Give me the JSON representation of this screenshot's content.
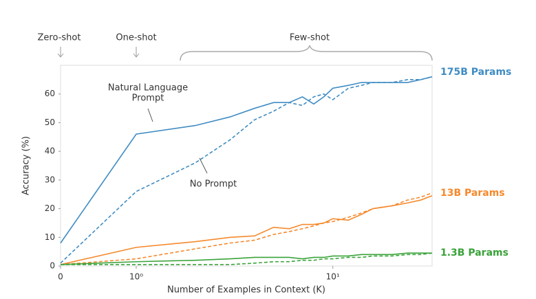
{
  "chart_data": {
    "type": "line",
    "x_label": "Number of Examples in Context  (K)",
    "y_label": "Accuracy (%)",
    "annotations": {
      "zero_shot": "Zero-shot",
      "one_shot": "One-shot",
      "few_shot": "Few-shot",
      "natural_language_1": "Natural Language",
      "natural_language_2": "Prompt",
      "no_prompt": "No Prompt"
    },
    "x": [
      0,
      1,
      2,
      3,
      4,
      5,
      6,
      7,
      8,
      9,
      10,
      12,
      14,
      16,
      20,
      24,
      28,
      32
    ],
    "xlim": [
      0,
      32
    ],
    "xticks": [
      0,
      {
        "value": 1,
        "label": "10⁰"
      },
      {
        "value": 10,
        "label": "10¹"
      }
    ],
    "ylim": [
      0,
      70
    ],
    "yticks": [
      0,
      10,
      20,
      30,
      40,
      50,
      60
    ],
    "series": [
      {
        "name": "175B Params",
        "color": "#3f8cc3",
        "values": [
          8,
          46,
          49,
          52,
          55,
          57,
          57,
          59,
          56.5,
          59,
          62,
          63,
          64,
          64,
          64,
          64,
          65,
          66
        ],
        "dashed_values": [
          1,
          26,
          36,
          44,
          51,
          54,
          57,
          56,
          59,
          60,
          58,
          62,
          63,
          64,
          64,
          65,
          65,
          66
        ]
      },
      {
        "name": "13B Params",
        "color": "#f5892c",
        "values": [
          0.5,
          6.5,
          8.5,
          10,
          10.5,
          13.5,
          13,
          14.5,
          14.5,
          15,
          16.5,
          16,
          18,
          20,
          21,
          22,
          23,
          24.5
        ],
        "dashed_values": [
          0.5,
          2.5,
          6,
          8,
          9,
          11,
          12,
          13,
          14,
          15,
          15.5,
          17,
          18.5,
          20,
          21,
          23,
          24,
          25.5
        ]
      },
      {
        "name": "1.3B Params",
        "color": "#3aa33a",
        "values": [
          0.5,
          1.5,
          2,
          2.5,
          3,
          3,
          3,
          2.5,
          3,
          3,
          3.5,
          3.5,
          4,
          4,
          4,
          4.5,
          4.5,
          4.5
        ],
        "dashed_values": [
          0.5,
          0.5,
          0.5,
          0.5,
          1,
          1.5,
          1.5,
          2,
          2,
          2.5,
          2.5,
          3,
          3,
          3.5,
          3.5,
          4,
          4,
          4.5
        ]
      }
    ]
  }
}
